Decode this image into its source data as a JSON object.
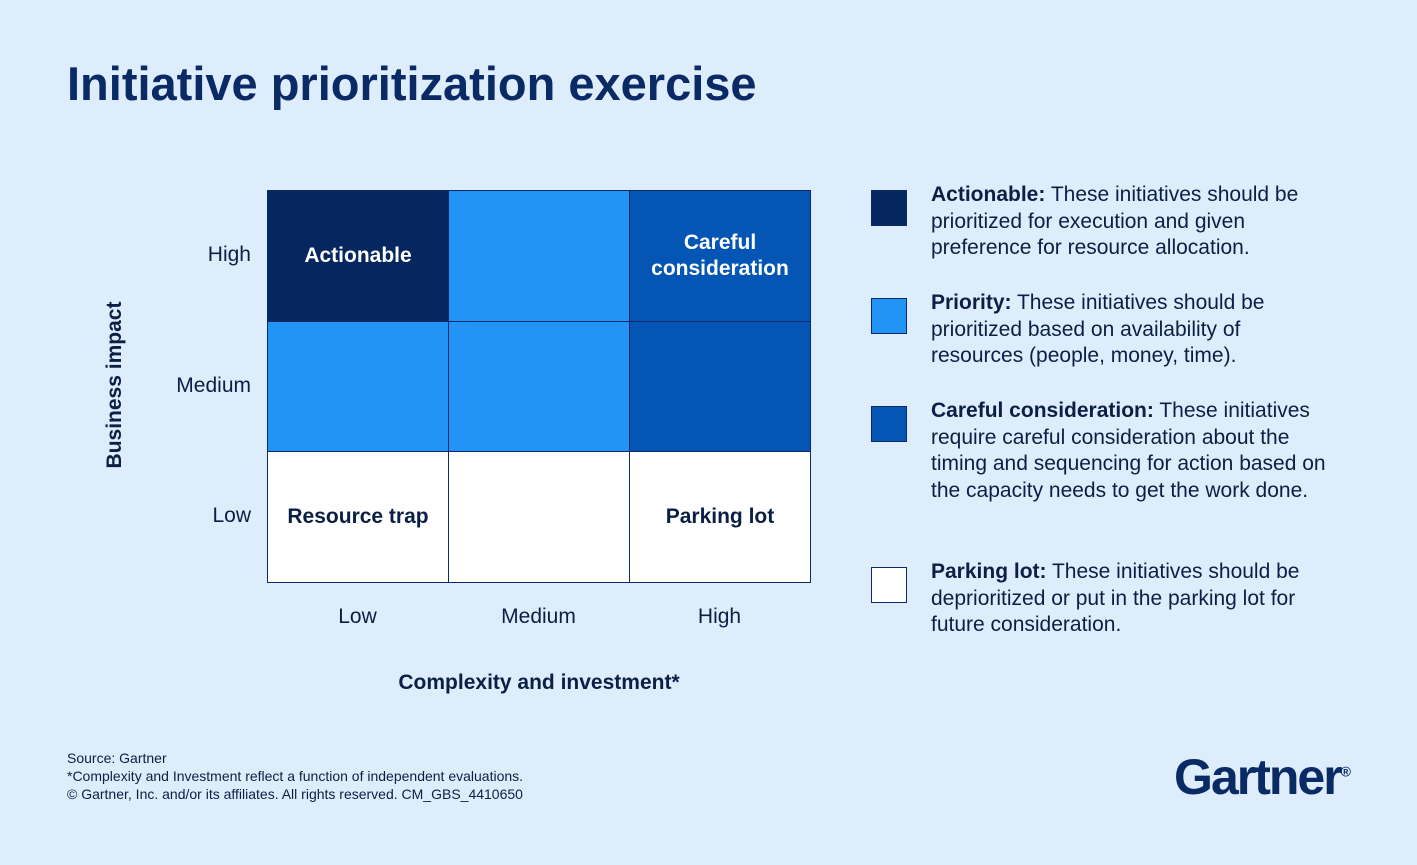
{
  "title": "Initiative prioritization exercise",
  "y_axis": {
    "label": "Business impact",
    "levels": [
      "High",
      "Medium",
      "Low"
    ]
  },
  "x_axis": {
    "label": "Complexity and investment*",
    "levels": [
      "Low",
      "Medium",
      "High"
    ]
  },
  "grid": {
    "rows": [
      [
        {
          "label": "Actionable",
          "color": "#06265f"
        },
        {
          "color": "#2394f7"
        },
        {
          "label": "Careful consideration",
          "color": "#0455b4"
        }
      ],
      [
        {
          "color": "#2394f7"
        },
        {
          "color": "#2394f7"
        },
        {
          "color": "#0455b4"
        }
      ],
      [
        {
          "label": "Resource trap",
          "color": "#ffffff"
        },
        {
          "color": "#ffffff"
        },
        {
          "label": "Parking lot",
          "color": "#ffffff"
        }
      ]
    ]
  },
  "legend": [
    {
      "term": "Actionable:",
      "text": "These initiatives should be prioritized for execution and given preference for resource allocation.",
      "color": "#06265f"
    },
    {
      "term": "Priority:",
      "text": "These initiatives should be prioritized based on availability of resources (people, money, time).",
      "color": "#2394f7"
    },
    {
      "term": "Careful consideration:",
      "text": "These initiatives require careful consideration about the timing and sequencing for action based on the capacity needs to get the work done.",
      "color": "#0455b4"
    },
    {
      "term": "Parking lot:",
      "text": "These initiatives should be deprioritized or put in the parking lot for future consideration.",
      "color": "#ffffff"
    }
  ],
  "footer": {
    "source": "Source: Gartner",
    "note": "*Complexity and Investment reflect a function of independent evaluations.",
    "copyright": "© Gartner, Inc. and/or its affiliates. All rights reserved. CM_GBS_4410650"
  },
  "logo": {
    "text": "Gartner",
    "mark": "®"
  }
}
